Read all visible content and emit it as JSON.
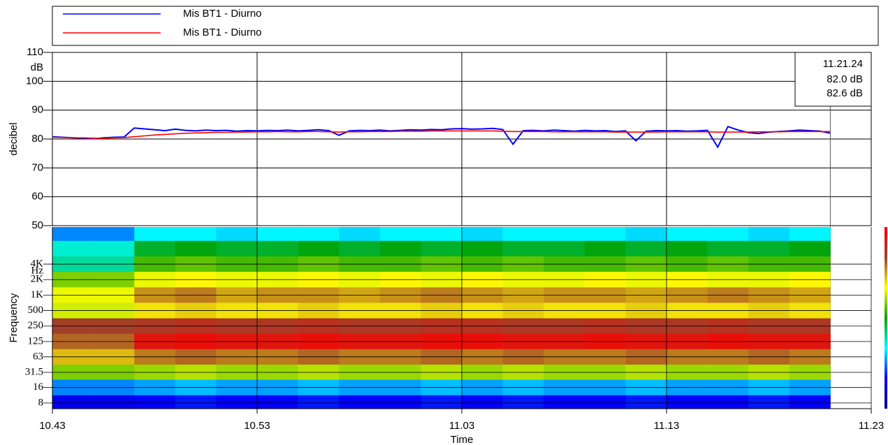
{
  "chart_data": [
    {
      "type": "line",
      "ylabel": "decibel",
      "yunit": "dB",
      "ylim": [
        50,
        110
      ],
      "yticks": [
        50,
        60,
        70,
        80,
        90,
        100,
        110
      ],
      "xlim": [
        643,
        683
      ],
      "grid": true,
      "x": [
        643,
        643.5,
        644,
        644.5,
        645,
        645.5,
        646,
        646.5,
        647,
        647.5,
        648,
        648.5,
        649,
        649.5,
        650,
        650.5,
        651,
        651.5,
        652,
        652.5,
        653,
        653.5,
        654,
        654.5,
        655,
        655.5,
        656,
        656.5,
        657,
        657.5,
        658,
        658.5,
        659,
        659.5,
        660,
        660.5,
        661,
        661.5,
        662,
        662.5,
        663,
        663.5,
        664,
        664.5,
        665,
        665.5,
        666,
        666.5,
        667,
        667.5,
        668,
        668.5,
        669,
        669.5,
        670,
        670.5,
        671,
        671.5,
        672,
        672.5,
        673,
        673.5,
        674,
        674.5,
        675,
        675.5,
        676,
        676.5,
        677,
        677.5,
        678,
        678.5,
        679,
        679.5,
        680,
        680.5,
        681
      ],
      "series": [
        {
          "name": "Mis BT1 - Diurno",
          "color": "#0000ff",
          "cursor_label": "82.0 dB",
          "values": [
            80.8,
            80.6,
            80.4,
            80.3,
            80.1,
            80.4,
            80.6,
            80.7,
            83.8,
            83.5,
            83.2,
            82.9,
            83.4,
            83.0,
            82.8,
            83.1,
            82.9,
            83.0,
            82.7,
            82.9,
            82.8,
            83.0,
            82.9,
            83.1,
            82.8,
            83.0,
            83.2,
            82.9,
            81.3,
            82.8,
            83.0,
            82.9,
            83.1,
            82.8,
            83.0,
            83.2,
            83.1,
            83.3,
            83.2,
            83.5,
            83.6,
            83.4,
            83.5,
            83.7,
            83.3,
            78.2,
            82.9,
            83.0,
            82.8,
            83.1,
            82.9,
            82.7,
            83.0,
            82.8,
            82.9,
            82.6,
            82.8,
            79.4,
            82.7,
            82.9,
            82.8,
            82.9,
            82.7,
            82.8,
            83.0,
            77.2,
            84.3,
            83.1,
            82.2,
            81.9,
            82.4,
            82.6,
            82.8,
            83.1,
            82.9,
            82.7,
            82.0
          ]
        },
        {
          "name": "Mis BT1 - Diurno",
          "color": "#ff0000",
          "cursor_label": "82.6 dB",
          "values": [
            80.6,
            80.5,
            80.4,
            80.4,
            80.3,
            80.3,
            80.4,
            80.5,
            80.8,
            81.1,
            81.4,
            81.6,
            81.8,
            82.0,
            82.1,
            82.2,
            82.3,
            82.3,
            82.4,
            82.4,
            82.5,
            82.5,
            82.6,
            82.5,
            82.5,
            82.6,
            82.6,
            82.5,
            82.4,
            82.5,
            82.5,
            82.6,
            82.6,
            82.6,
            82.7,
            82.7,
            82.7,
            82.8,
            82.8,
            82.8,
            82.8,
            82.8,
            82.8,
            82.8,
            82.7,
            82.6,
            82.6,
            82.6,
            82.6,
            82.5,
            82.5,
            82.5,
            82.5,
            82.5,
            82.5,
            82.4,
            82.4,
            82.4,
            82.4,
            82.4,
            82.5,
            82.5,
            82.5,
            82.5,
            82.5,
            82.4,
            82.4,
            82.4,
            82.4,
            82.5,
            82.5,
            82.5,
            82.6,
            82.6,
            82.6,
            82.6,
            82.6
          ]
        }
      ],
      "cursor": {
        "x": 681,
        "label": "11.21.24"
      }
    },
    {
      "type": "heatmap",
      "xlabel": "Time",
      "ylabel": "Frequency",
      "yunit": "Hz",
      "log_y": true,
      "xlim": [
        643,
        683
      ],
      "xticks": [
        {
          "value": 643,
          "label": "10.43"
        },
        {
          "value": 653,
          "label": "10.53"
        },
        {
          "value": 663,
          "label": "11.03"
        },
        {
          "value": 673,
          "label": "11.13"
        },
        {
          "value": 683,
          "label": "11.23"
        }
      ],
      "ylim": [
        6.2,
        21000
      ],
      "yticks": [
        8,
        16,
        31.5,
        63,
        125,
        250,
        500,
        {
          "value": 1000,
          "label": "1K"
        },
        {
          "value": 2000,
          "label": "2K"
        },
        {
          "value": 4000,
          "label": "4K"
        }
      ],
      "x_bins": [
        643,
        645,
        647,
        649,
        651,
        653,
        655,
        657,
        659,
        661,
        663,
        665,
        667,
        669,
        671,
        673,
        675,
        677,
        679,
        681
      ],
      "y": [
        16000,
        8000,
        4000,
        2000,
        1000,
        500,
        250,
        125,
        63,
        31.5,
        16,
        8
      ],
      "zlim": [
        20,
        75
      ],
      "colormap": [
        "#000080",
        "#0000ff",
        "#00ffff",
        "#00a000",
        "#ffff00",
        "#a0402a",
        "#ff0000"
      ],
      "z": [
        [
          34,
          34,
          38,
          38,
          37,
          38,
          38,
          37,
          38,
          38,
          37,
          38,
          38,
          38,
          37,
          38,
          38,
          37,
          38
        ],
        [
          40,
          40,
          46,
          47,
          46,
          46,
          47,
          46,
          47,
          46,
          47,
          46,
          46,
          47,
          46,
          47,
          46,
          46,
          47
        ],
        [
          42,
          42,
          50,
          51,
          50,
          50,
          51,
          50,
          50,
          51,
          50,
          51,
          50,
          50,
          51,
          50,
          51,
          50,
          50
        ],
        [
          52,
          52,
          56,
          57,
          56,
          56,
          57,
          56,
          57,
          56,
          57,
          56,
          56,
          57,
          56,
          57,
          56,
          56,
          57
        ],
        [
          56,
          56,
          62,
          63,
          61,
          62,
          62,
          61,
          62,
          63,
          62,
          61,
          62,
          62,
          61,
          62,
          63,
          62,
          61
        ],
        [
          55,
          55,
          58,
          59,
          58,
          58,
          59,
          58,
          58,
          59,
          58,
          59,
          58,
          58,
          59,
          58,
          58,
          59,
          58
        ],
        [
          66,
          66,
          67,
          68,
          67,
          67,
          68,
          67,
          67,
          68,
          68,
          67,
          67,
          68,
          67,
          67,
          68,
          67,
          67
        ],
        [
          64,
          64,
          72,
          73,
          72,
          72,
          73,
          72,
          72,
          73,
          73,
          72,
          72,
          73,
          72,
          72,
          73,
          72,
          72
        ],
        [
          60,
          60,
          63,
          64,
          63,
          63,
          64,
          63,
          63,
          64,
          63,
          64,
          63,
          63,
          64,
          63,
          63,
          64,
          63
        ],
        [
          52,
          52,
          53,
          54,
          53,
          53,
          54,
          53,
          53,
          54,
          53,
          54,
          53,
          53,
          54,
          53,
          53,
          54,
          53
        ],
        [
          34,
          34,
          35,
          36,
          35,
          35,
          36,
          35,
          35,
          36,
          35,
          36,
          35,
          35,
          36,
          35,
          35,
          36,
          35
        ],
        [
          28,
          28,
          29,
          30,
          29,
          29,
          30,
          29,
          29,
          30,
          29,
          30,
          29,
          29,
          30,
          29,
          29,
          30,
          29
        ]
      ]
    }
  ]
}
